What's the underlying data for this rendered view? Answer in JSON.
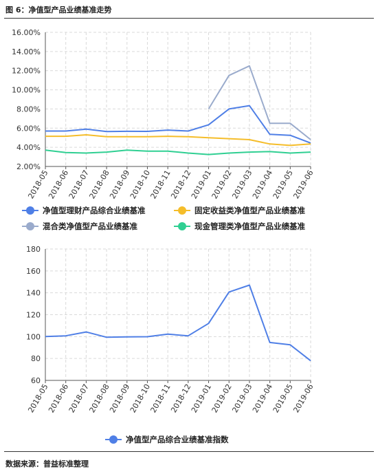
{
  "caption": "图 6：净值型产品业绩基准走势",
  "source": "数据来源：普益标准整理",
  "chart_data": [
    {
      "type": "line",
      "categories": [
        "2018-05",
        "2018-06",
        "2018-07",
        "2018-08",
        "2018-09",
        "2018-10",
        "2018-11",
        "2018-12",
        "2019-01",
        "2019-02",
        "2019-03",
        "2019-04",
        "2019-05",
        "2019-06"
      ],
      "ylim": [
        0.02,
        0.16
      ],
      "yticks": [
        "2.00%",
        "4.00%",
        "6.00%",
        "8.00%",
        "10.00%",
        "12.00%",
        "14.00%",
        "16.00%"
      ],
      "grid": true,
      "legend_position": "bottom",
      "series": [
        {
          "name": "净值型理财产品综合业绩基准",
          "color": "#4f7fe6",
          "values": [
            0.057,
            0.057,
            0.059,
            0.0565,
            0.0567,
            0.0566,
            0.058,
            0.057,
            0.0635,
            0.08,
            0.0835,
            0.0535,
            0.0525,
            0.0445
          ]
        },
        {
          "name": "固定收益类净值型产品业绩基准",
          "color": "#f5bd2a",
          "values": [
            0.0515,
            0.0515,
            0.053,
            0.051,
            0.051,
            0.051,
            0.0515,
            0.051,
            0.05,
            0.049,
            0.048,
            0.0435,
            0.042,
            0.0435
          ]
        },
        {
          "name": "混合类净值型产品业绩基准",
          "color": "#9aabcc",
          "values": [
            null,
            null,
            null,
            null,
            null,
            null,
            null,
            null,
            0.08,
            0.115,
            0.125,
            0.065,
            0.065,
            0.048
          ]
        },
        {
          "name": "现金管理类净值型产品业绩基准",
          "color": "#2fcf92",
          "values": [
            0.037,
            0.0345,
            0.034,
            0.035,
            0.037,
            0.036,
            0.036,
            0.034,
            0.0325,
            0.034,
            0.035,
            0.0355,
            0.034,
            0.035
          ]
        }
      ]
    },
    {
      "type": "line",
      "categories": [
        "2018-05",
        "2018-06",
        "2018-07",
        "2018-08",
        "2018-09",
        "2018-10",
        "2018-11",
        "2018-12",
        "2019-01",
        "2019-02",
        "2019-03",
        "2019-04",
        "2019-05",
        "2019-06"
      ],
      "ylim": [
        60,
        180
      ],
      "yticks": [
        "60",
        "80",
        "100",
        "120",
        "140",
        "160",
        "180"
      ],
      "grid": true,
      "legend_position": "bottom",
      "series": [
        {
          "name": "净值型产品综合业绩基准指数",
          "color": "#4f7fe6",
          "values": [
            100,
            100.7,
            104.2,
            99.4,
            99.8,
            99.9,
            102.2,
            100.7,
            112,
            140.7,
            147,
            94.6,
            92.5,
            78
          ]
        }
      ]
    }
  ]
}
